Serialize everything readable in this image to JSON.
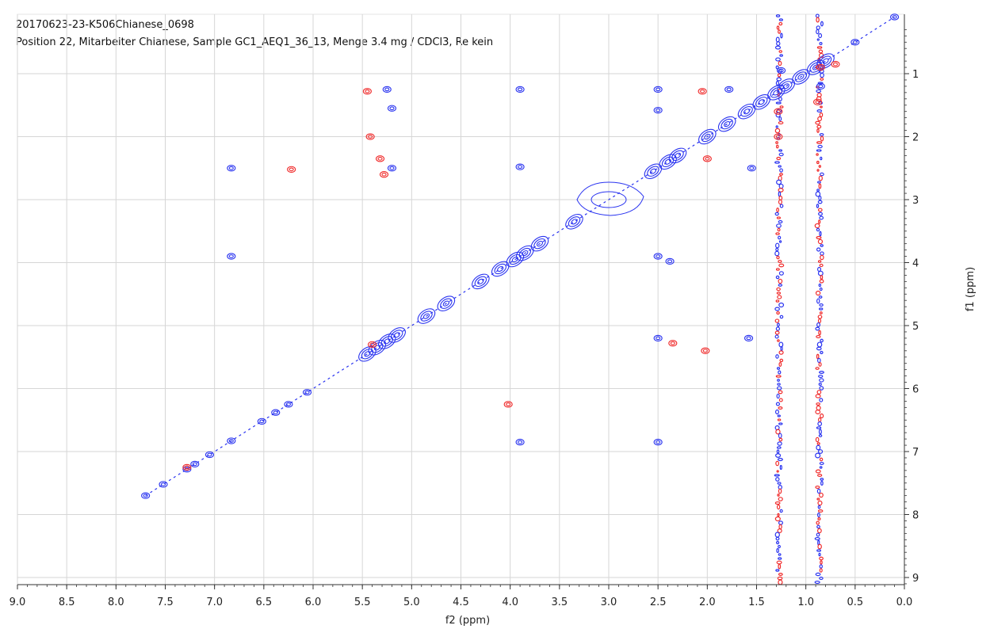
{
  "header": {
    "experiment_id": "20170623-23-K506Chianese_0698",
    "description": "Position 22, Mitarbeiter Chianese, Sample GC1_AEQ1_36_13, Menge 3.4 mg / CDCl3, Re kein"
  },
  "colors": {
    "positive": "#2a34f0",
    "negative": "#f02a2a",
    "grid": "#d6d6d6",
    "axis": "#333333"
  },
  "chart_data": {
    "type": "scatter",
    "title": "",
    "xlabel": "f2 (ppm)",
    "ylabel": "f1 (ppm)",
    "xlim": [
      9.0,
      -0.1
    ],
    "ylim": [
      0.3,
      9.1
    ],
    "x_reversed": true,
    "grid": true,
    "x_ticks": [
      "9.0",
      "8.5",
      "8.0",
      "7.5",
      "7.0",
      "6.5",
      "6.0",
      "5.5",
      "5.0",
      "4.5",
      "4.0",
      "3.5",
      "3.0",
      "2.5",
      "2.0",
      "1.5",
      "1.0",
      "0.5",
      "0.0"
    ],
    "y_ticks": [
      "1",
      "2",
      "3",
      "4",
      "5",
      "6",
      "7",
      "8",
      "9"
    ],
    "series": [
      {
        "id": "pos",
        "points": [
          [
            7.7,
            7.7
          ],
          [
            7.52,
            7.52
          ],
          [
            7.28,
            7.28
          ],
          [
            7.2,
            7.2
          ],
          [
            7.05,
            7.05
          ],
          [
            6.83,
            6.83
          ],
          [
            6.52,
            6.52
          ],
          [
            6.38,
            6.38
          ],
          [
            6.25,
            6.25
          ],
          [
            6.06,
            6.06
          ],
          [
            5.45,
            5.45
          ],
          [
            5.35,
            5.35
          ],
          [
            5.25,
            5.25
          ],
          [
            5.15,
            5.15
          ],
          [
            4.85,
            4.85
          ],
          [
            4.65,
            4.65
          ],
          [
            4.3,
            4.3
          ],
          [
            4.1,
            4.1
          ],
          [
            3.95,
            3.95
          ],
          [
            3.85,
            3.85
          ],
          [
            3.7,
            3.7
          ],
          [
            3.35,
            3.35
          ],
          [
            2.55,
            2.55
          ],
          [
            2.4,
            2.4
          ],
          [
            2.3,
            2.3
          ],
          [
            2.0,
            2.0
          ],
          [
            1.8,
            1.8
          ],
          [
            1.6,
            1.6
          ],
          [
            1.45,
            1.45
          ],
          [
            1.3,
            1.3
          ],
          [
            1.2,
            1.2
          ],
          [
            1.05,
            1.05
          ],
          [
            0.9,
            0.9
          ],
          [
            0.8,
            0.8
          ],
          [
            0.5,
            0.5
          ],
          [
            0.1,
            0.1
          ],
          [
            6.83,
            2.5
          ],
          [
            6.83,
            3.9
          ],
          [
            5.25,
            1.25
          ],
          [
            5.2,
            1.55
          ],
          [
            5.2,
            2.5
          ],
          [
            3.9,
            1.25
          ],
          [
            3.9,
            2.48
          ],
          [
            3.9,
            6.85
          ],
          [
            2.5,
            1.25
          ],
          [
            2.5,
            1.58
          ],
          [
            2.5,
            3.9
          ],
          [
            2.5,
            5.2
          ],
          [
            2.5,
            6.85
          ],
          [
            2.38,
            3.98
          ],
          [
            1.78,
            1.25
          ],
          [
            1.55,
            2.5
          ],
          [
            1.58,
            5.2
          ],
          [
            0.85,
            1.2
          ],
          [
            1.25,
            0.95
          ]
        ]
      },
      {
        "id": "neg",
        "points": [
          [
            7.28,
            7.25
          ],
          [
            6.22,
            2.52
          ],
          [
            5.45,
            1.28
          ],
          [
            5.42,
            2.0
          ],
          [
            5.4,
            5.3
          ],
          [
            5.32,
            2.35
          ],
          [
            5.28,
            2.6
          ],
          [
            4.02,
            6.25
          ],
          [
            2.35,
            5.28
          ],
          [
            2.05,
            1.28
          ],
          [
            2.02,
            5.4
          ],
          [
            2.0,
            2.35
          ],
          [
            1.28,
            1.6
          ],
          [
            1.28,
            2.0
          ],
          [
            0.85,
            0.9
          ],
          [
            0.88,
            1.45
          ],
          [
            0.7,
            0.85
          ]
        ]
      }
    ],
    "cross_peak_columns": [
      1.27,
      0.86
    ],
    "broad_peak": [
      3.0,
      3.0
    ]
  }
}
